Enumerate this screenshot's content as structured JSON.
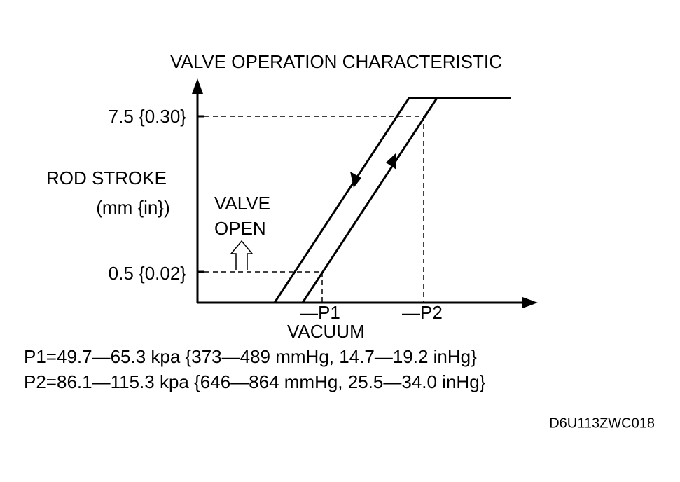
{
  "title": "VALVE OPERATION CHARACTERISTIC",
  "y_axis": {
    "label_line1": "ROD STROKE",
    "label_line2": "(mm {in})",
    "tick_high": "7.5 {0.30}",
    "tick_low": "0.5 {0.02}"
  },
  "annotation": {
    "line1": "VALVE",
    "line2": "OPEN"
  },
  "x_axis": {
    "p1": "—P1",
    "p2": "—P2",
    "label": "VACUUM"
  },
  "notes": [
    "P1=49.7—65.3 kpa {373—489 mmHg, 14.7—19.2 inHg}",
    "P2=86.1—115.3 kpa {646—864 mmHg, 25.5—34.0 inHg}"
  ],
  "code": "D6U113ZWC018"
}
